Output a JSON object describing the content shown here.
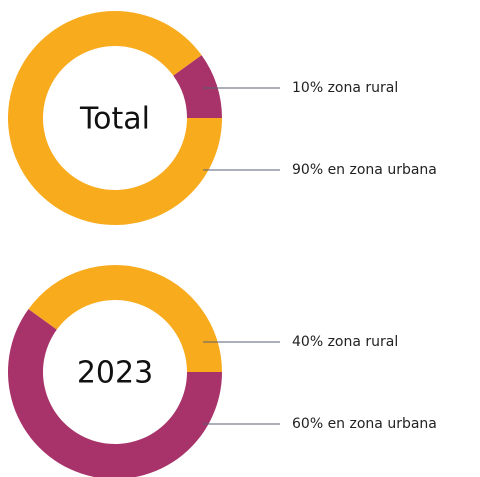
{
  "chart_data": [
    {
      "type": "donut",
      "title": "Total",
      "values": [
        10,
        90
      ],
      "value_labels": [
        "10% zona rural",
        "90% en zona urbana"
      ],
      "colors": [
        "#a8336a",
        "#f9ab1e"
      ]
    },
    {
      "type": "donut",
      "title": "2023",
      "values": [
        40,
        60
      ],
      "value_labels": [
        "40% zona rural",
        "60% en zona urbana"
      ],
      "colors": [
        "#f9ab1e",
        "#a8336a"
      ]
    }
  ]
}
